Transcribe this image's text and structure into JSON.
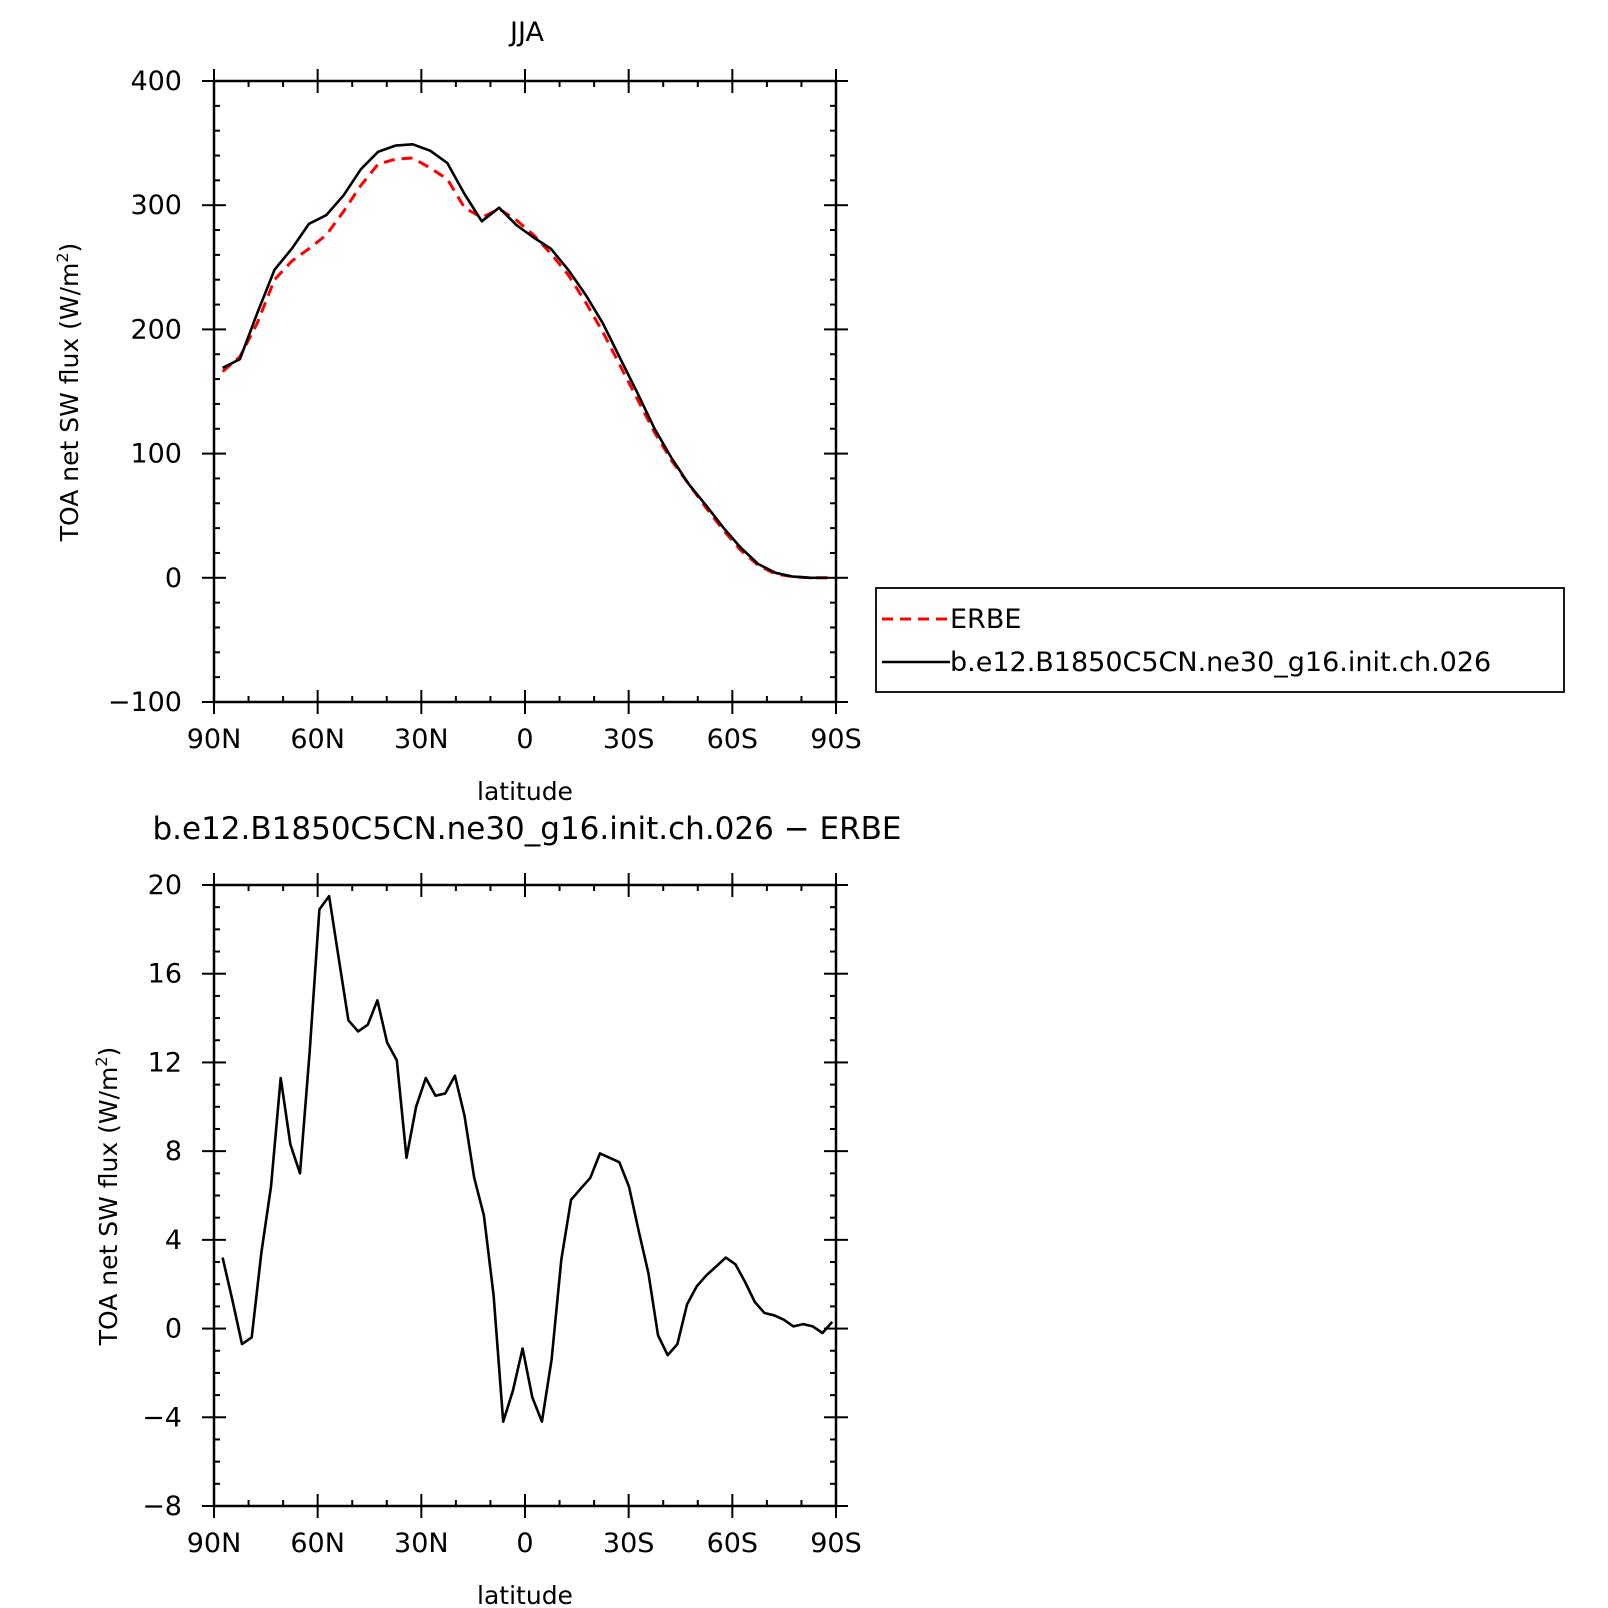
{
  "chart_data": [
    {
      "type": "line",
      "title": "JJA",
      "xlabel": "latitude",
      "ylabel": "TOA net SW flux (W/m²)",
      "ylabel_main": "TOA net SW flux (W/m",
      "ylabel_sup": "2",
      "ylabel_end": ")",
      "x_ticks": [
        "90N",
        "60N",
        "30N",
        "0",
        "30S",
        "60S",
        "90S"
      ],
      "x_tick_values": [
        90,
        60,
        30,
        0,
        -30,
        -60,
        -90
      ],
      "xlim": [
        90,
        -90
      ],
      "y_ticks": [
        "400",
        "300",
        "200",
        "100",
        "0",
        "−100"
      ],
      "y_tick_values": [
        400,
        300,
        200,
        100,
        0,
        -100
      ],
      "ylim": [
        -100,
        400
      ],
      "legend": "outside-right-bottom",
      "grid": false,
      "series": [
        {
          "name": "ERBE",
          "color": "#ff0000",
          "dash": "dashed",
          "x": [
            87.5,
            82.5,
            77.5,
            72.5,
            67.5,
            62.5,
            57.5,
            52.5,
            47.5,
            42.5,
            37.5,
            32.5,
            27.5,
            22.5,
            17.5,
            12.5,
            7.5,
            2.5,
            -2.5,
            -7.5,
            -12.5,
            -17.5,
            -22.5,
            -27.5,
            -32.5,
            -37.5,
            -42.5,
            -47.5,
            -52.5,
            -57.5,
            -62.5,
            -67.5,
            -72.5,
            -77.5,
            -82.5,
            -87.5
          ],
          "values": [
            166,
            178,
            205,
            240,
            255,
            265,
            276,
            295,
            316,
            333,
            337,
            338,
            330,
            321,
            298,
            290,
            297,
            288,
            276,
            261,
            244,
            222,
            198,
            171,
            144,
            117,
            94,
            75,
            56,
            38,
            22,
            10,
            3,
            1,
            0,
            0
          ]
        },
        {
          "name": "b.e12.B1850C5CN.ne30_g16.init.ch.026",
          "color": "#000000",
          "dash": "solid",
          "x": [
            87.5,
            82.5,
            77.5,
            72.5,
            67.5,
            62.5,
            57.5,
            52.5,
            47.5,
            42.5,
            37.5,
            32.5,
            27.5,
            22.5,
            17.5,
            12.5,
            7.5,
            2.5,
            -2.5,
            -7.5,
            -12.5,
            -17.5,
            -22.5,
            -27.5,
            -32.5,
            -37.5,
            -42.5,
            -47.5,
            -52.5,
            -57.5,
            -62.5,
            -67.5,
            -72.5,
            -77.5,
            -82.5,
            -87.5
          ],
          "values": [
            169,
            176,
            213,
            248,
            265,
            285,
            292,
            308,
            329,
            343,
            348,
            349,
            344,
            334,
            309,
            287,
            298,
            284,
            274,
            265,
            248,
            228,
            205,
            177,
            149,
            120,
            96,
            75,
            58,
            40,
            24,
            11,
            4,
            1,
            0,
            0
          ]
        }
      ]
    },
    {
      "type": "line",
      "title": "b.e12.B1850C5CN.ne30_g16.init.ch.026 − ERBE",
      "xlabel": "latitude",
      "ylabel": "TOA net SW flux (W/m²)",
      "ylabel_main": "TOA net SW flux (W/m",
      "ylabel_sup": "2",
      "ylabel_end": ")",
      "x_ticks": [
        "90N",
        "60N",
        "30N",
        "0",
        "30S",
        "60S",
        "90S"
      ],
      "x_tick_values": [
        90,
        60,
        30,
        0,
        -30,
        -60,
        -90
      ],
      "xlim": [
        90,
        -90
      ],
      "y_ticks": [
        "20",
        "16",
        "12",
        "8",
        "4",
        "0",
        "−4",
        "−8"
      ],
      "y_tick_values": [
        20,
        16,
        12,
        8,
        4,
        0,
        -4,
        -8
      ],
      "ylim": [
        -8,
        20
      ],
      "grid": false,
      "series": [
        {
          "color": "#000000",
          "dash": "solid",
          "x": [
            87.5,
            84.7,
            81.9,
            79.1,
            76.3,
            73.5,
            70.7,
            67.9,
            65.1,
            62.3,
            59.5,
            56.7,
            53.9,
            51.1,
            48.3,
            45.5,
            42.7,
            39.9,
            37.1,
            34.3,
            31.5,
            28.7,
            25.9,
            23.1,
            20.3,
            17.5,
            14.7,
            11.9,
            9.1,
            6.3,
            3.5,
            0.7,
            -2.1,
            -4.9,
            -7.7,
            -10.5,
            -13.3,
            -16.1,
            -18.9,
            -21.7,
            -24.5,
            -27.3,
            -30.1,
            -32.9,
            -35.7,
            -38.5,
            -41.3,
            -44.1,
            -46.9,
            -49.7,
            -52.5,
            -55.3,
            -58.1,
            -60.9,
            -63.7,
            -66.5,
            -69.3,
            -72.1,
            -74.9,
            -77.7,
            -80.5,
            -83.3,
            -86.1,
            -88.9
          ],
          "values": [
            3.2,
            1.3,
            -0.7,
            -0.4,
            3.4,
            6.4,
            11.3,
            8.3,
            7.0,
            12.5,
            18.9,
            19.5,
            16.7,
            13.9,
            13.4,
            13.7,
            14.8,
            12.9,
            12.1,
            7.7,
            10.0,
            11.3,
            10.5,
            10.6,
            11.4,
            9.6,
            6.8,
            5.1,
            1.5,
            -4.2,
            -2.8,
            -0.9,
            -3.1,
            -4.2,
            -1.4,
            3.1,
            5.8,
            6.3,
            6.8,
            7.9,
            7.7,
            7.5,
            6.4,
            4.4,
            2.5,
            -0.3,
            -1.2,
            -0.7,
            1.1,
            1.9,
            2.4,
            2.8,
            3.2,
            2.9,
            2.1,
            1.2,
            0.7,
            0.6,
            0.4,
            0.1,
            0.2,
            0.1,
            -0.2,
            0.3
          ]
        }
      ]
    }
  ]
}
